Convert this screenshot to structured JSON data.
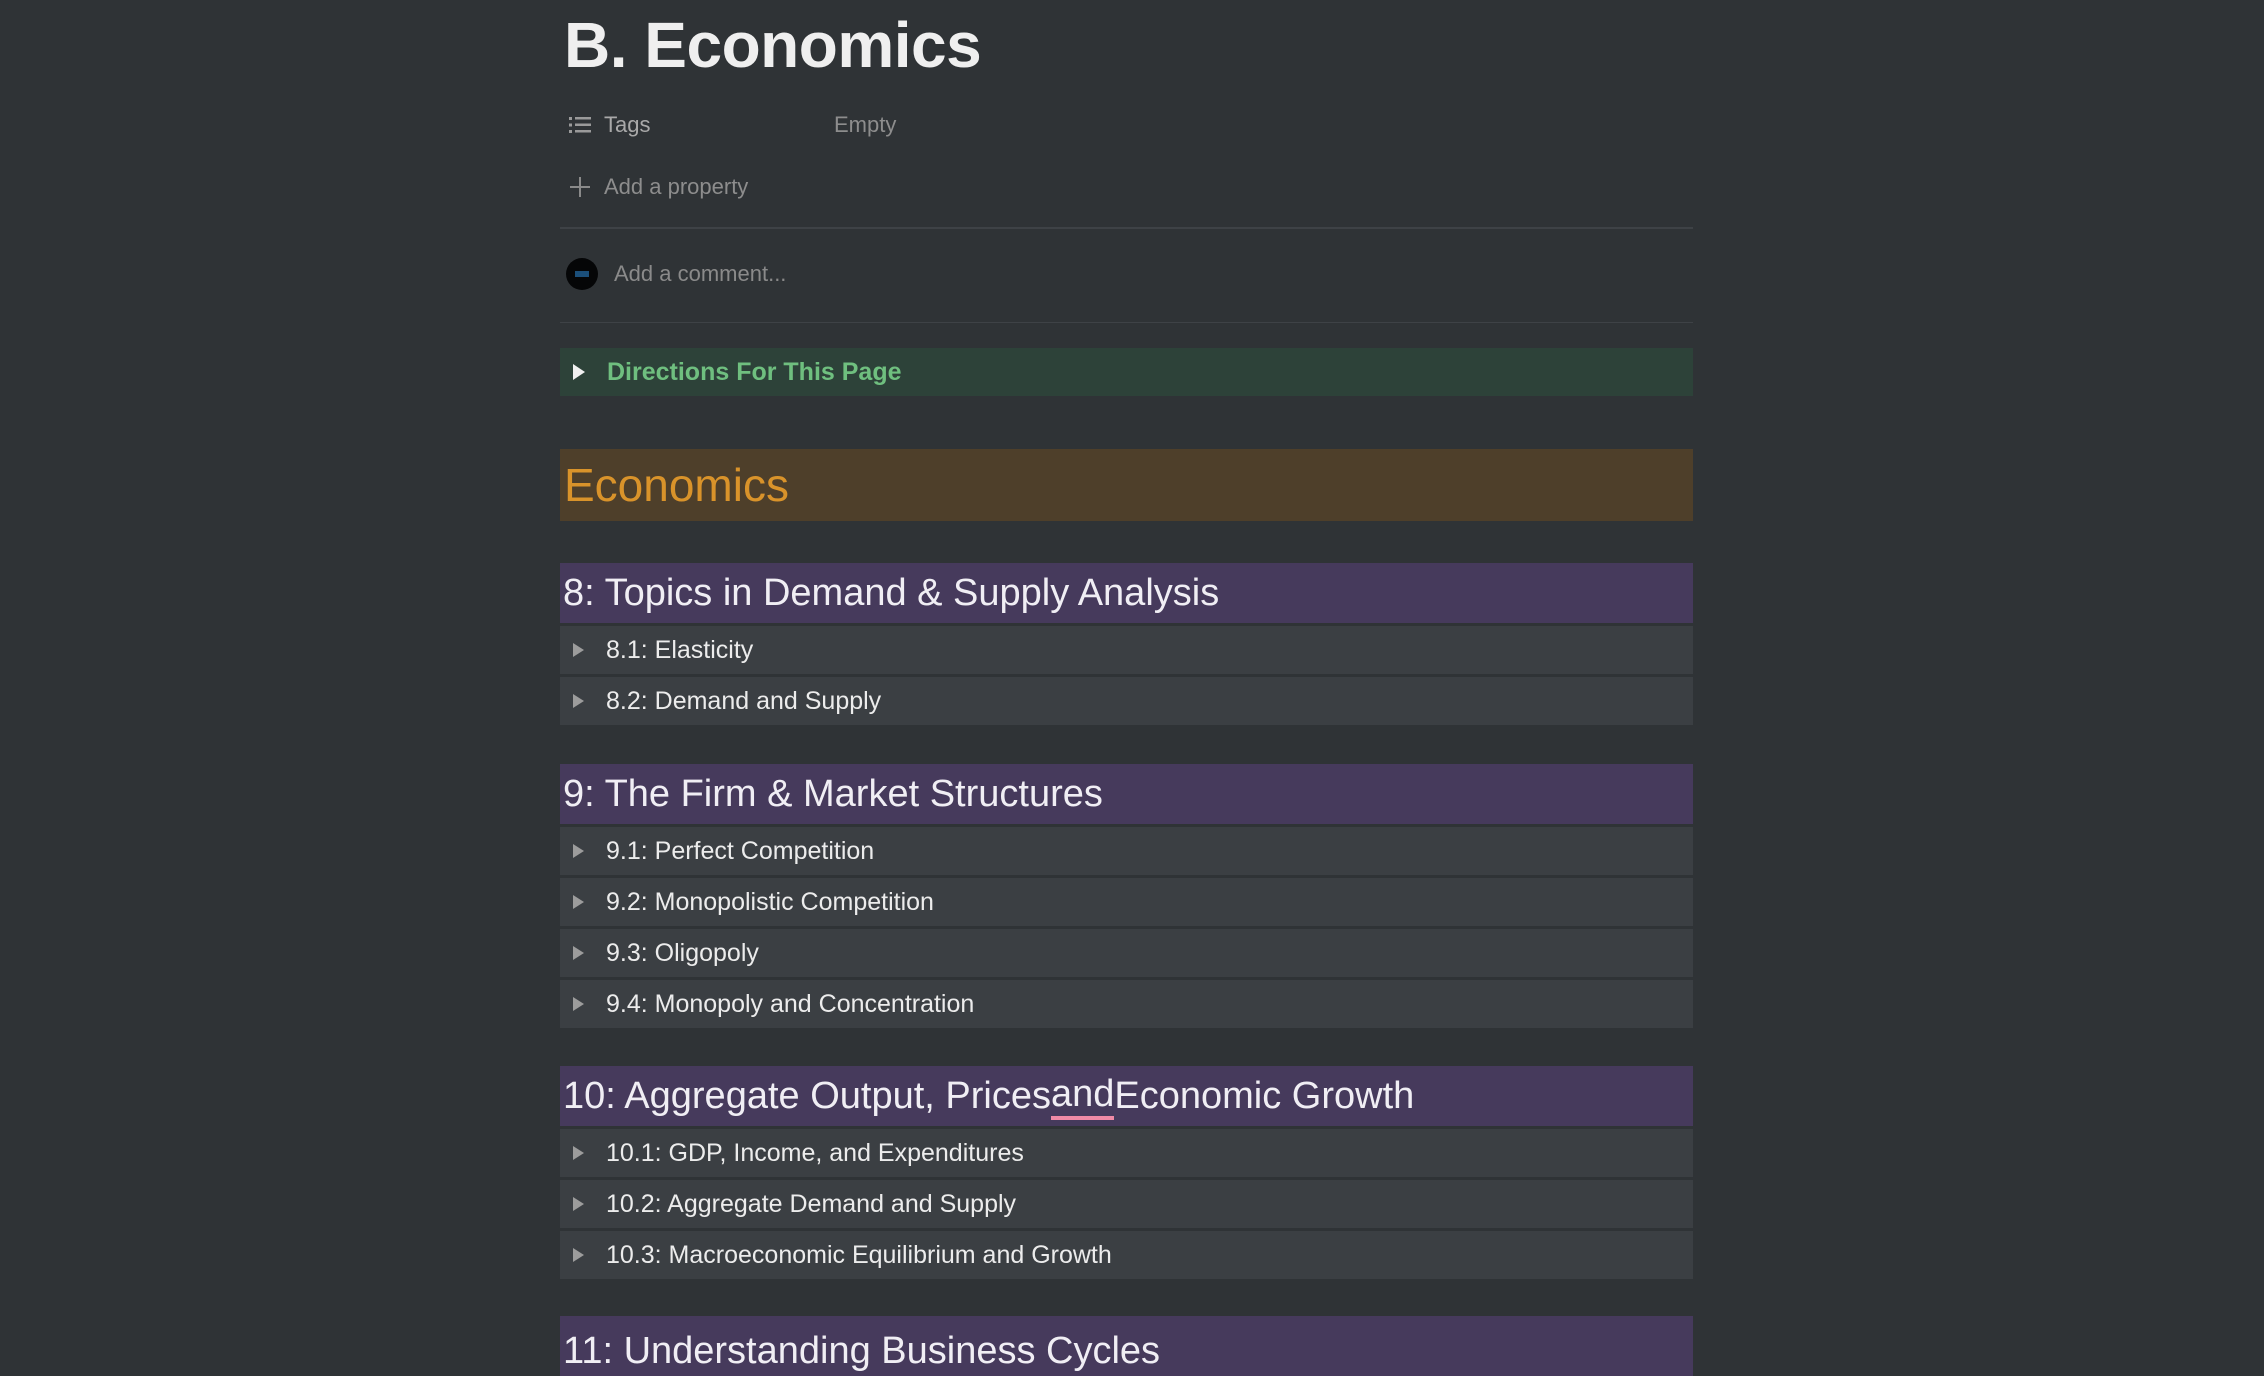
{
  "page": {
    "title": "B. Economics"
  },
  "properties": {
    "tags": {
      "label": "Tags",
      "value": "Empty",
      "icon": "list-icon"
    },
    "add_property": {
      "label": "Add a property",
      "icon": "plus-icon"
    }
  },
  "comment": {
    "placeholder": "Add a comment..."
  },
  "directions": {
    "label": "Directions For This Page"
  },
  "colors": {
    "background": "#2f3336",
    "directions_bg": "#2d4239",
    "directions_text": "#6fbf7f",
    "economics_bg": "#4e3f2a",
    "economics_text": "#d9932a",
    "section_bg": "#463a5c",
    "row_bg": "#3b3f43"
  },
  "economics_heading": "Economics",
  "sections": [
    {
      "title": "8: Topics in Demand & Supply Analysis",
      "items": [
        "8.1: Elasticity",
        "8.2: Demand and Supply"
      ]
    },
    {
      "title": "9: The Firm & Market Structures",
      "items": [
        "9.1: Perfect Competition",
        "9.2: Monopolistic Competition",
        "9.3: Oligopoly",
        "9.4: Monopoly and Concentration"
      ]
    },
    {
      "title_a": "10: Aggregate Output, Prices ",
      "title_b": "and",
      "title_c": " Economic Growth",
      "items": [
        "10.1: GDP, Income, and Expenditures",
        "10.2: Aggregate Demand and Supply",
        "10.3: Macroeconomic Equilibrium and Growth"
      ]
    },
    {
      "title": "11: Understanding Business Cycles"
    }
  ]
}
